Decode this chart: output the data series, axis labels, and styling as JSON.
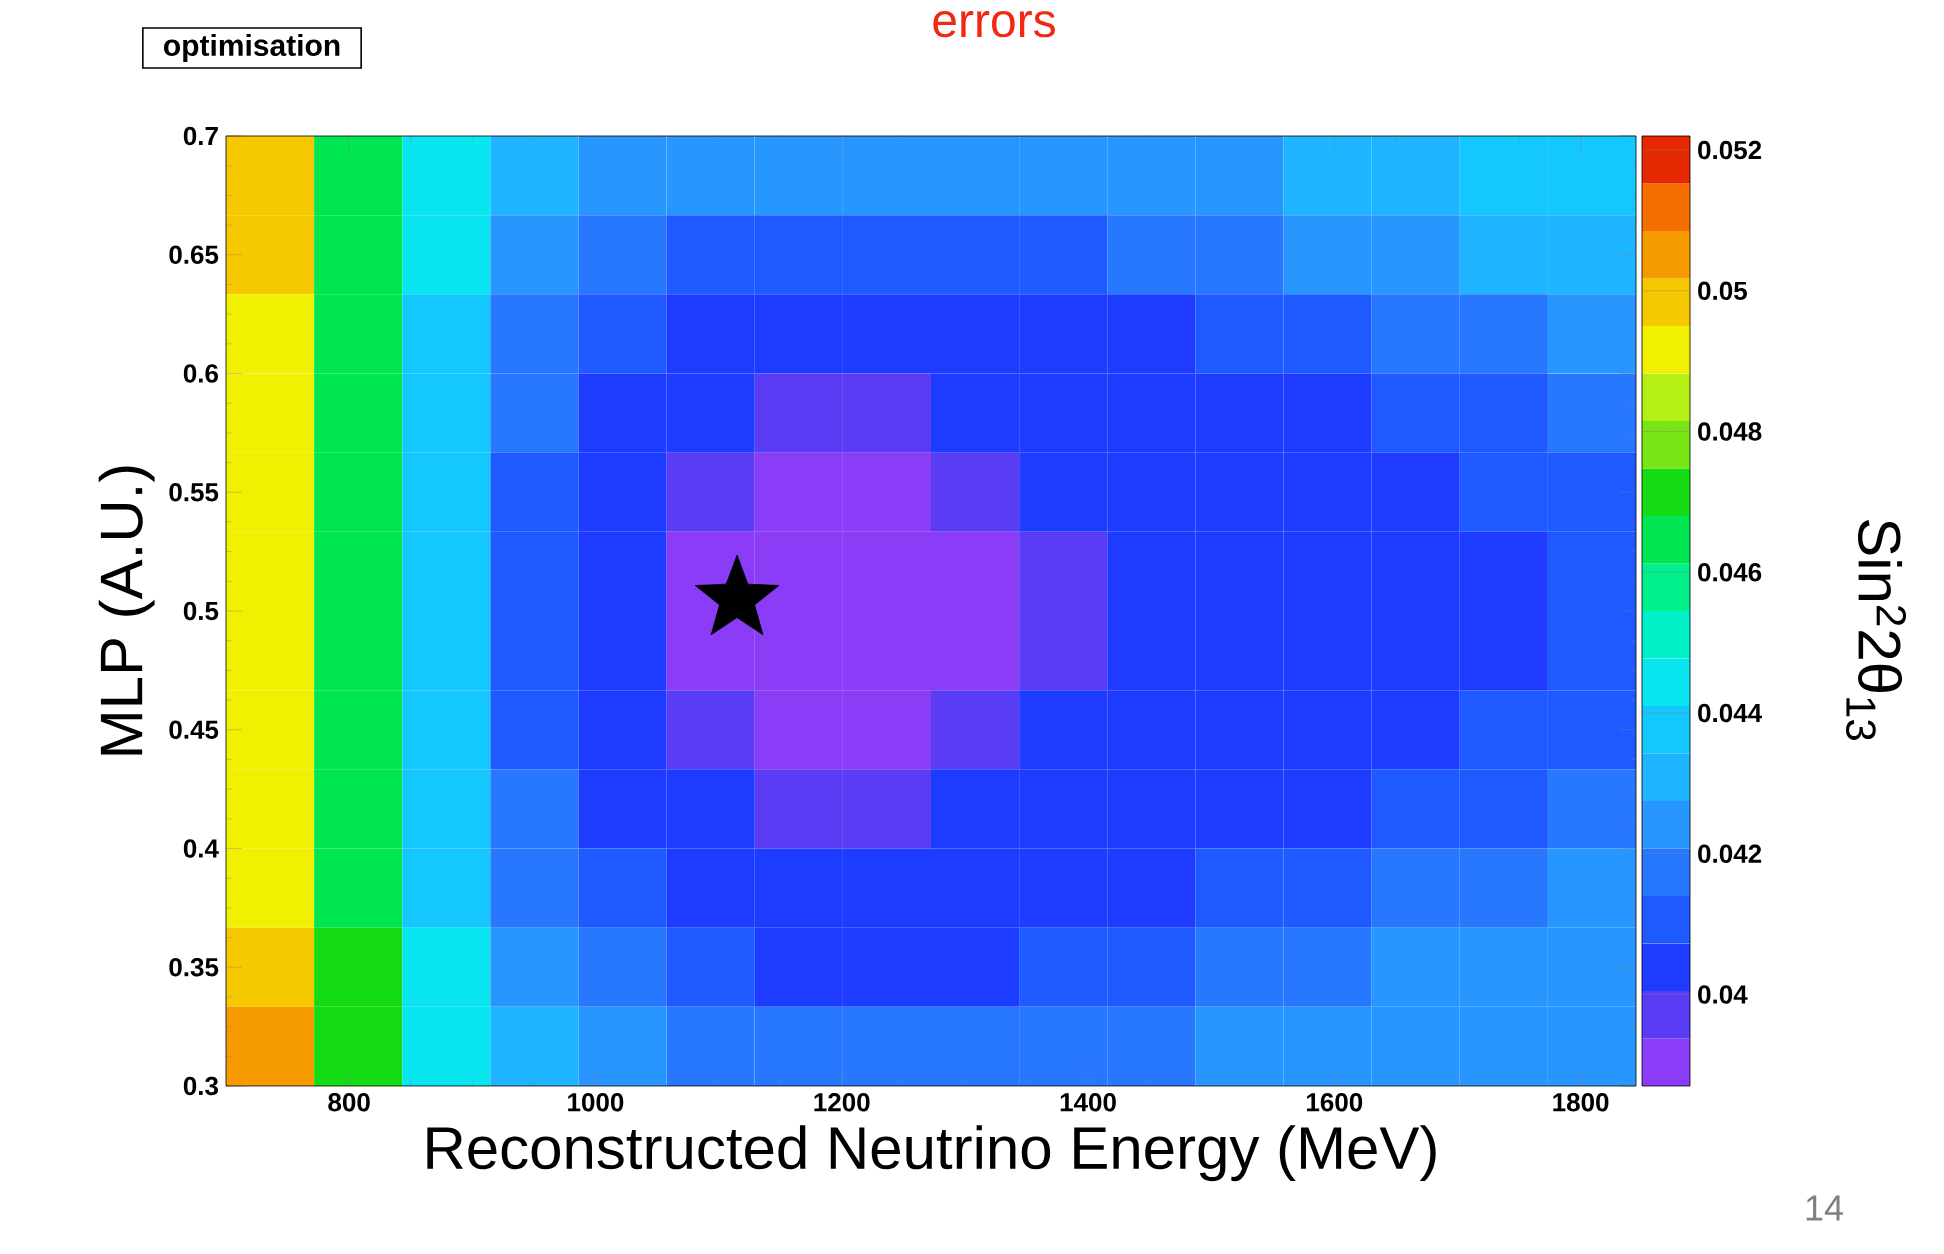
{
  "chart_data": {
    "type": "heatmap",
    "title": "errors",
    "xlabel": "Reconstructed Neutrino Energy (MeV)",
    "ylabel": "MLP (A.U.)",
    "clabel": "Sin$^{2}$2θ$_{13}$",
    "annotations": [
      "optimisation",
      "14"
    ],
    "xlim": [
      700,
      1845
    ],
    "ylim": [
      0.3,
      0.7
    ],
    "xticks": [
      800,
      1000,
      1200,
      1400,
      1600,
      1800
    ],
    "yticks": [
      0.3,
      0.35,
      0.4,
      0.45,
      0.5,
      0.55,
      0.6,
      0.65,
      0.7
    ],
    "clim": [
      0.0387,
      0.0522
    ],
    "cticks": [
      0.04,
      0.042,
      0.044,
      0.046,
      0.048,
      0.05,
      0.052
    ],
    "cells": [
      [
        0.0498,
        0.0465,
        0.0444,
        0.0431,
        0.0424,
        0.0424,
        0.0424,
        0.0424,
        0.0424,
        0.0424,
        0.0424,
        0.0424,
        0.0431,
        0.0431,
        0.0438,
        0.0438
      ],
      [
        0.0498,
        0.0465,
        0.0444,
        0.0424,
        0.0417,
        0.0411,
        0.0411,
        0.0411,
        0.0411,
        0.0411,
        0.0417,
        0.0417,
        0.0424,
        0.0424,
        0.0431,
        0.0431
      ],
      [
        0.0492,
        0.0465,
        0.0438,
        0.0417,
        0.0411,
        0.0404,
        0.0404,
        0.0404,
        0.0404,
        0.0404,
        0.0404,
        0.0411,
        0.0411,
        0.0417,
        0.0417,
        0.0424
      ],
      [
        0.0492,
        0.0465,
        0.0438,
        0.0417,
        0.0404,
        0.0404,
        0.0397,
        0.0397,
        0.0404,
        0.0404,
        0.0404,
        0.0404,
        0.0404,
        0.0411,
        0.0411,
        0.0417
      ],
      [
        0.0492,
        0.0465,
        0.0438,
        0.0411,
        0.0404,
        0.0397,
        0.039,
        0.039,
        0.0397,
        0.0404,
        0.0404,
        0.0404,
        0.0404,
        0.0404,
        0.0411,
        0.0411
      ],
      [
        0.0492,
        0.0465,
        0.0438,
        0.0411,
        0.0404,
        0.039,
        0.039,
        0.039,
        0.039,
        0.0397,
        0.0404,
        0.0404,
        0.0404,
        0.0404,
        0.0404,
        0.0411
      ],
      [
        0.0492,
        0.0465,
        0.0438,
        0.0411,
        0.0404,
        0.039,
        0.039,
        0.039,
        0.039,
        0.0397,
        0.0404,
        0.0404,
        0.0404,
        0.0404,
        0.0404,
        0.0411
      ],
      [
        0.0492,
        0.0465,
        0.0438,
        0.0411,
        0.0404,
        0.0397,
        0.039,
        0.039,
        0.0397,
        0.0404,
        0.0404,
        0.0404,
        0.0404,
        0.0404,
        0.0411,
        0.0411
      ],
      [
        0.0492,
        0.0465,
        0.0438,
        0.0417,
        0.0404,
        0.0404,
        0.0397,
        0.0397,
        0.0404,
        0.0404,
        0.0404,
        0.0404,
        0.0404,
        0.0411,
        0.0411,
        0.0417
      ],
      [
        0.0492,
        0.0465,
        0.0438,
        0.0417,
        0.0411,
        0.0404,
        0.0404,
        0.0404,
        0.0404,
        0.0404,
        0.0404,
        0.0411,
        0.0411,
        0.0417,
        0.0417,
        0.0424
      ],
      [
        0.0498,
        0.0471,
        0.0444,
        0.0424,
        0.0417,
        0.0411,
        0.0404,
        0.0404,
        0.0404,
        0.0411,
        0.0411,
        0.0417,
        0.0417,
        0.0424,
        0.0424,
        0.0424
      ],
      [
        0.0505,
        0.0471,
        0.0444,
        0.0431,
        0.0424,
        0.0417,
        0.0417,
        0.0417,
        0.0417,
        0.0417,
        0.0417,
        0.0424,
        0.0424,
        0.0424,
        0.0424,
        0.0424
      ]
    ],
    "series": [
      {
        "type": "scatter",
        "x": [
          1115
        ],
        "values": [
          0.505
        ],
        "marker": "star",
        "color": "#000000"
      }
    ]
  }
}
